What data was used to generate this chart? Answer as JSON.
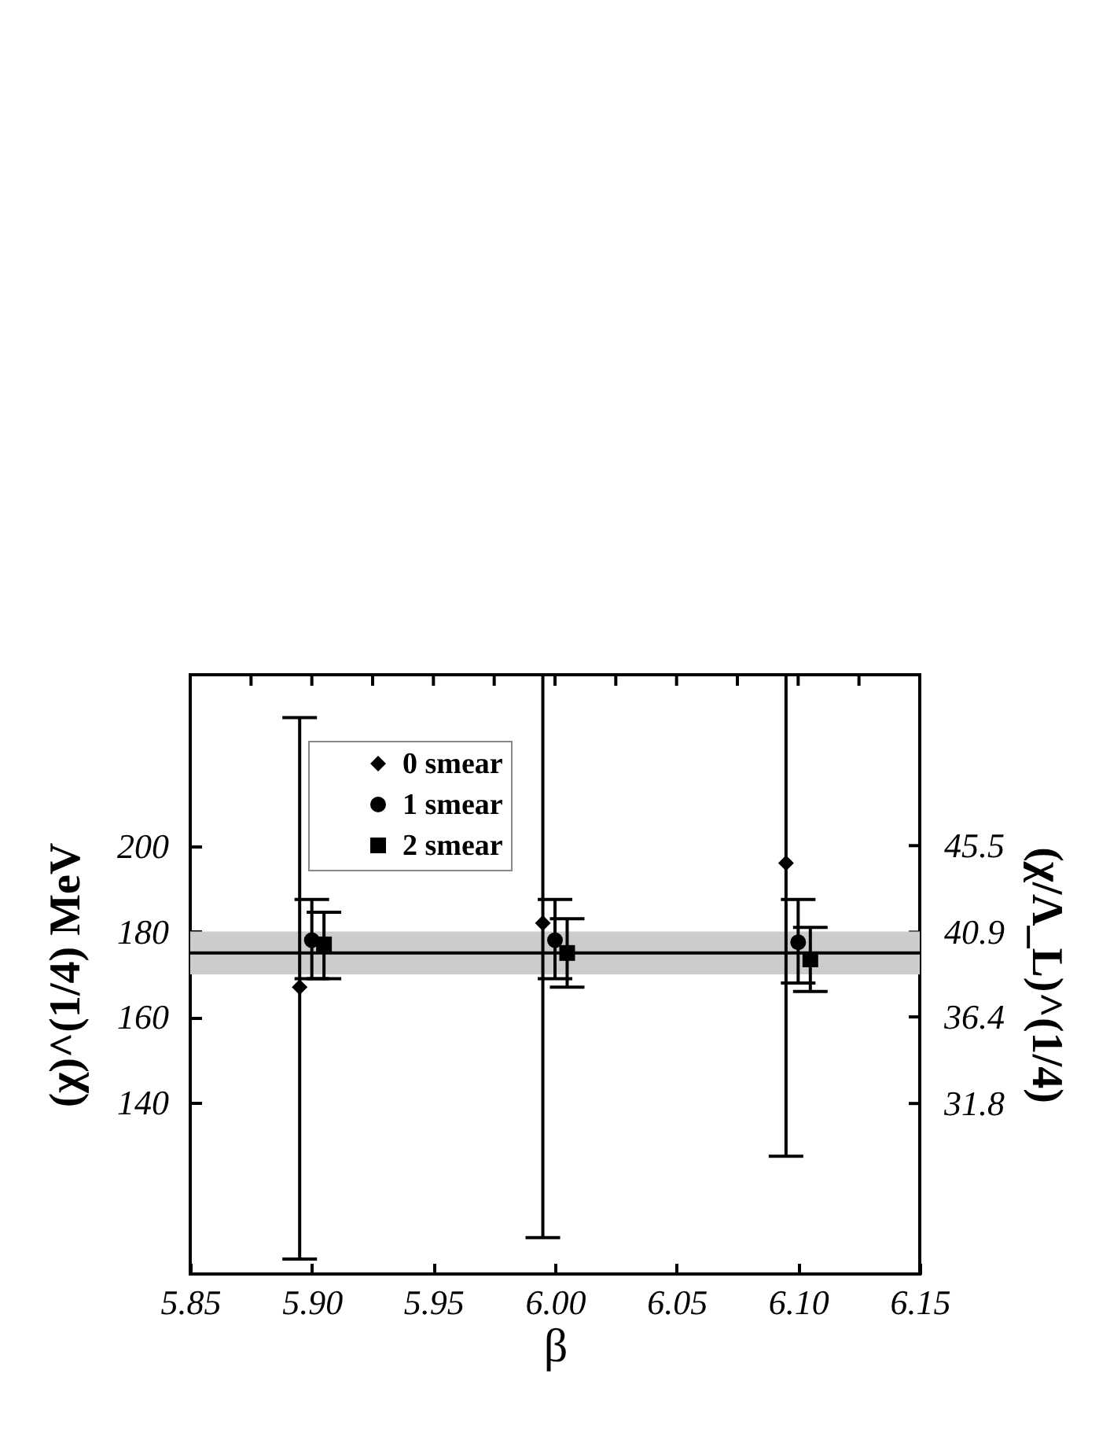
{
  "chart_data": {
    "type": "scatter",
    "xlabel": "β",
    "ylabel": "(χ)^(1/4) MeV",
    "y2label": "(χ/Λ_L)^(1/4)",
    "xlim": [
      5.85,
      6.15
    ],
    "xticks": [
      5.85,
      {
        "value": 5.875,
        "label": null
      },
      {
        "value": 5.9,
        "label": "5.90"
      },
      {
        "value": 5.925,
        "label": null
      },
      5.95,
      {
        "value": 5.975,
        "label": null
      },
      {
        "value": 6,
        "label": "6.00"
      },
      {
        "value": 6.025,
        "label": null
      },
      6.05,
      {
        "value": 6.075,
        "label": null
      },
      {
        "value": 6.1,
        "label": "6.10"
      },
      {
        "value": 6.125,
        "label": null
      },
      6.15
    ],
    "ylim": [
      100,
      240
    ],
    "yticks": [
      140,
      160,
      180,
      200
    ],
    "y2lim": [
      22.74,
      54.58
    ],
    "y2ticks": [
      31.8,
      36.4,
      40.9,
      45.5
    ],
    "legend": "top left",
    "series": [
      {
        "name": "0 smear",
        "color": "#000000",
        "marker": "diamond",
        "x": [
          5.895,
          5.995,
          6.095
        ],
        "values": [
          167,
          182,
          196
        ],
        "errors": [
          [
            103.5,
            230
          ],
          [
            108.5,
            240
          ],
          [
            127.5,
            240
          ]
        ]
      },
      {
        "name": "1 smear",
        "color": "#000000",
        "marker": "circle",
        "x": [
          5.9,
          6.0,
          6.1
        ],
        "values": [
          178,
          178,
          177.5
        ],
        "errors": [
          [
            169,
            187.5
          ],
          [
            169,
            187.5
          ],
          [
            168,
            187.5
          ]
        ]
      },
      {
        "name": "2 smear",
        "color": "#000000",
        "marker": "square",
        "x": [
          5.905,
          6.005,
          6.105
        ],
        "values": [
          177,
          175,
          173.5
        ],
        "errors": [
          [
            169,
            184.5
          ],
          [
            167,
            183
          ],
          [
            166,
            181
          ]
        ]
      }
    ],
    "bands": [
      {
        "axis": "y",
        "from": 170,
        "to": 180,
        "color": "#cccccc"
      }
    ],
    "ref_lines": [
      {
        "axis": "y",
        "value": 175,
        "color": "#000000"
      }
    ]
  }
}
